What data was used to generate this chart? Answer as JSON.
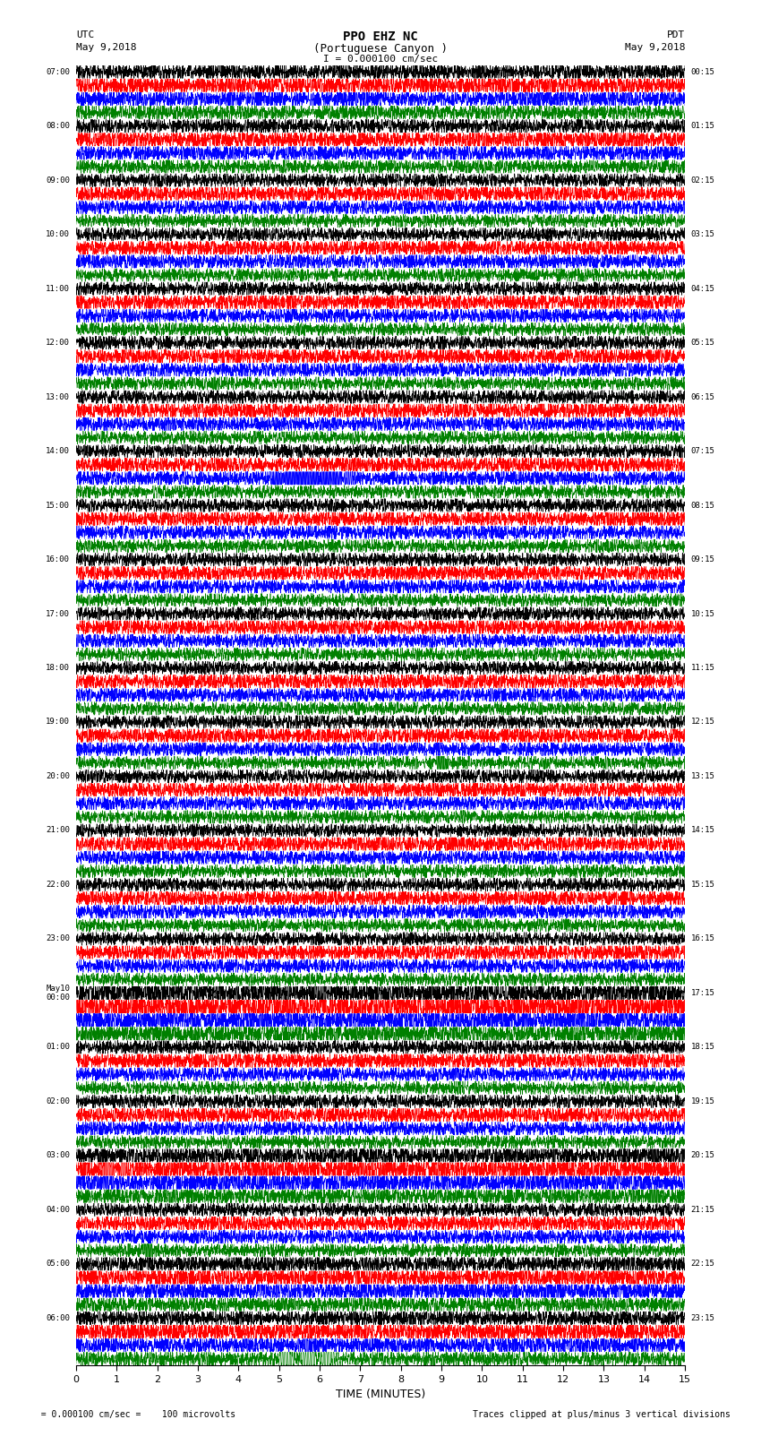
{
  "title_line1": "PPO EHZ NC",
  "title_line2": "(Portuguese Canyon )",
  "title_line3": "I = 0.000100 cm/sec",
  "left_header_line1": "UTC",
  "left_header_line2": "May 9,2018",
  "right_header_line1": "PDT",
  "right_header_line2": "May 9,2018",
  "xlabel": "TIME (MINUTES)",
  "footer_left": "  = 0.000100 cm/sec =    100 microvolts",
  "footer_right": "Traces clipped at plus/minus 3 vertical divisions",
  "utc_labels": [
    "07:00",
    "08:00",
    "09:00",
    "10:00",
    "11:00",
    "12:00",
    "13:00",
    "14:00",
    "15:00",
    "16:00",
    "17:00",
    "18:00",
    "19:00",
    "20:00",
    "21:00",
    "22:00",
    "23:00",
    "May10\n00:00",
    "01:00",
    "02:00",
    "03:00",
    "04:00",
    "05:00",
    "06:00"
  ],
  "pdt_labels": [
    "00:15",
    "01:15",
    "02:15",
    "03:15",
    "04:15",
    "05:15",
    "06:15",
    "07:15",
    "08:15",
    "09:15",
    "10:15",
    "11:15",
    "12:15",
    "13:15",
    "14:15",
    "15:15",
    "16:15",
    "17:15",
    "18:15",
    "19:15",
    "20:15",
    "21:15",
    "22:15",
    "23:15"
  ],
  "trace_colors": [
    "black",
    "red",
    "blue",
    "green"
  ],
  "n_rows": 24,
  "n_traces_per_row": 4,
  "time_minutes": 15,
  "background_color": "white",
  "trace_linewidth": 0.45
}
